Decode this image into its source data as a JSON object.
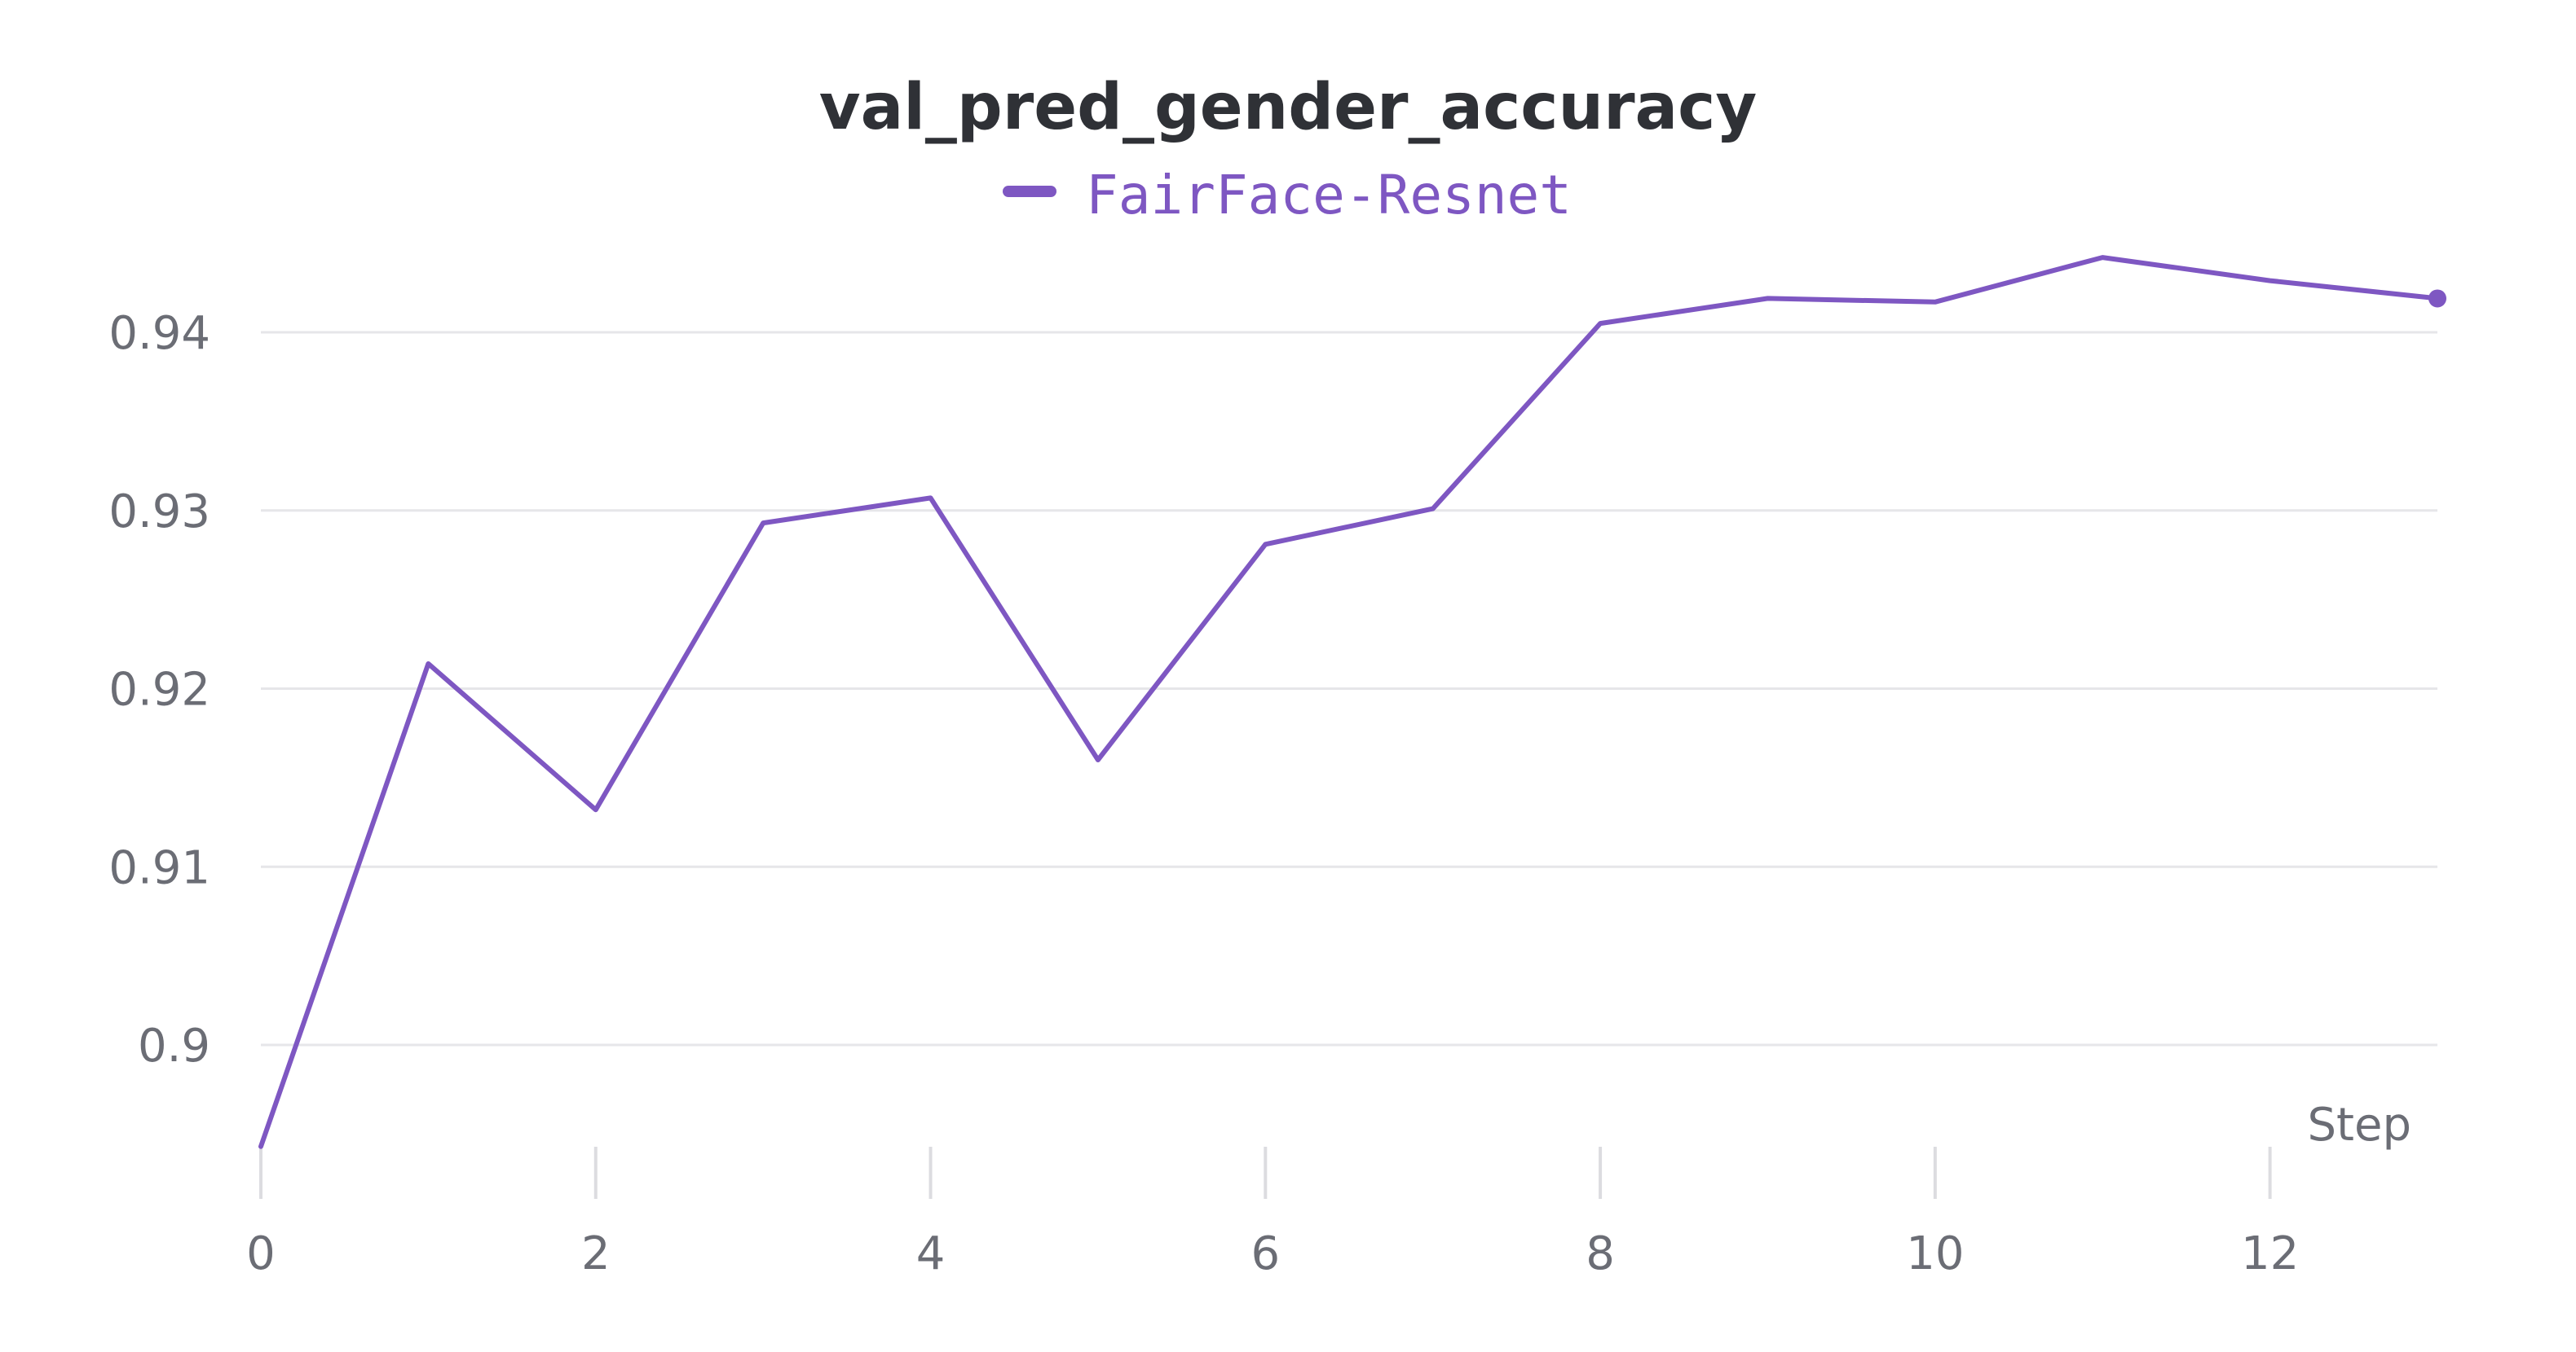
{
  "chart_data": {
    "type": "line",
    "title": "val_pred_gender_accuracy",
    "xlabel": "Step",
    "ylabel": "",
    "x": [
      0,
      1,
      2,
      3,
      4,
      5,
      6,
      7,
      8,
      9,
      10,
      11,
      12,
      13
    ],
    "series": [
      {
        "name": "FairFace-Resnet",
        "color": "#7e57c2",
        "values": [
          0.8943,
          0.9214,
          0.9132,
          0.9293,
          0.9307,
          0.916,
          0.9281,
          0.9301,
          0.9405,
          0.9419,
          0.9417,
          0.9442,
          0.9429,
          0.9419
        ]
      }
    ],
    "xlim": [
      0,
      13
    ],
    "ylim": [
      0.894,
      0.9465
    ],
    "x_ticks": [
      0,
      2,
      4,
      6,
      8,
      10,
      12
    ],
    "x_tick_labels": [
      "0",
      "2",
      "4",
      "6",
      "8",
      "10",
      "12"
    ],
    "y_ticks": [
      0.9,
      0.91,
      0.92,
      0.93,
      0.94
    ],
    "y_tick_labels": [
      "0.9",
      "0.91",
      "0.92",
      "0.93",
      "0.94"
    ],
    "grid": true,
    "legend_position": "top-center",
    "last_point_marker": true
  }
}
